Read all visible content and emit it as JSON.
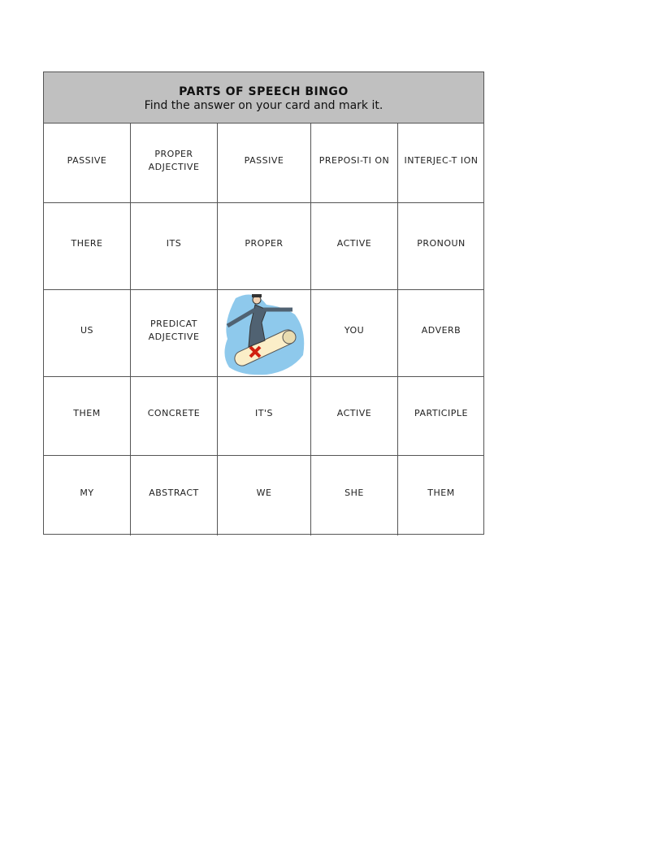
{
  "header": {
    "title": "PARTS OF SPEECH BINGO",
    "subtitle": "Find the answer on your card and mark it."
  },
  "grid": [
    [
      "PASSIVE",
      "PROPER ADJECTIVE",
      "PASSIVE",
      "PREPOSI-TI ON",
      "INTERJEC-T ION"
    ],
    [
      "THERE",
      "ITS",
      "PROPER",
      "ACTIVE",
      "PRONOUN"
    ],
    [
      "US",
      "PREDICAT ADJECTIVE",
      "",
      "YOU",
      "ADVERB"
    ],
    [
      "THEM",
      "CONCRETE",
      "IT'S",
      "ACTIVE",
      "PARTICIPLE"
    ],
    [
      "MY",
      "ABSTRACT",
      "WE",
      "SHE",
      "THEM"
    ]
  ],
  "center_image": "graduate-surfing-diploma-clipart",
  "colors": {
    "header_bg": "#c0c0c0",
    "border": "#555555",
    "clip_bg": "#8ec9ec"
  }
}
